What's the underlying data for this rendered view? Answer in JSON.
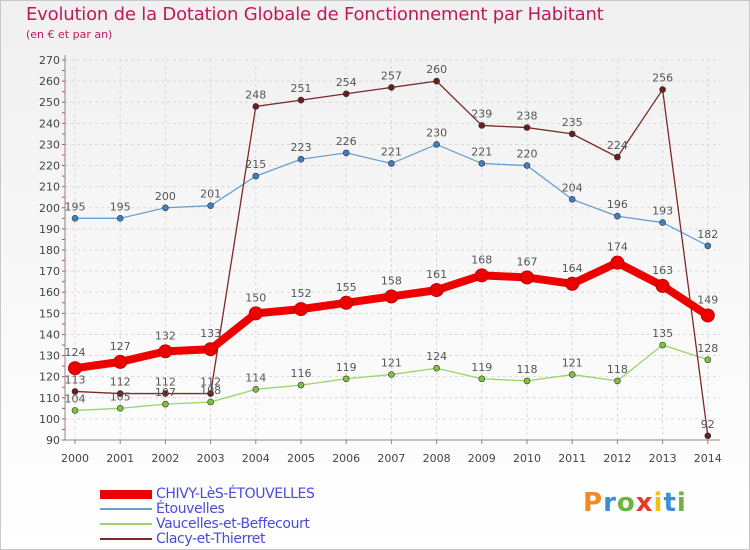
{
  "header": {
    "title": "Evolution de la Dotation Globale de Fonctionnement par Habitant",
    "subtitle": "(en € et par an)"
  },
  "brand": {
    "letters": [
      "P",
      "r",
      "o",
      "x",
      "i",
      "t",
      "i"
    ],
    "letter_colors": [
      "#f08a24",
      "#3a8fd6",
      "#6cb33f",
      "#e8392b",
      "#f4c20d",
      "#3a8fd6",
      "#6cb33f"
    ]
  },
  "chart_data": {
    "type": "line",
    "title": "Evolution de la Dotation Globale de Fonctionnement par Habitant",
    "subtitle": "(en € et par an)",
    "xlabel": "",
    "ylabel": "",
    "ylim": [
      90,
      270
    ],
    "yticks": [
      90,
      100,
      110,
      120,
      130,
      140,
      150,
      160,
      170,
      180,
      190,
      200,
      210,
      220,
      230,
      240,
      250,
      260,
      270
    ],
    "grid": true,
    "legend_position": "bottom-left",
    "x": [
      "2000",
      "2001",
      "2002",
      "2003",
      "2004",
      "2005",
      "2006",
      "2007",
      "2008",
      "2009",
      "2010",
      "2011",
      "2012",
      "2013",
      "2014"
    ],
    "series": [
      {
        "name": "CHIVY-LèS-ÉTOUVELLES",
        "color": "#ee0000",
        "marker_color": "#ee0000",
        "emphasis": "thick",
        "values": [
          124,
          127,
          132,
          133,
          150,
          152,
          155,
          158,
          161,
          168,
          167,
          164,
          174,
          163,
          149
        ]
      },
      {
        "name": "Étouvelles",
        "color": "#6a9fd0",
        "marker_color": "#3f7fc4",
        "emphasis": "normal",
        "values": [
          195,
          195,
          200,
          201,
          215,
          223,
          226,
          221,
          230,
          221,
          220,
          204,
          196,
          193,
          182
        ]
      },
      {
        "name": "Vaucelles-et-Beffecourt",
        "color": "#9bd36a",
        "marker_color": "#7dc242",
        "emphasis": "normal",
        "values": [
          104,
          105,
          107,
          108,
          114,
          116,
          119,
          121,
          124,
          119,
          118,
          121,
          118,
          135,
          128
        ]
      },
      {
        "name": "Clacy-et-Thierret",
        "color": "#7a2a2a",
        "marker_color": "#6b1d1d",
        "emphasis": "normal",
        "values": [
          113,
          112,
          112,
          112,
          248,
          251,
          254,
          257,
          260,
          239,
          238,
          235,
          224,
          256,
          92
        ]
      }
    ]
  }
}
